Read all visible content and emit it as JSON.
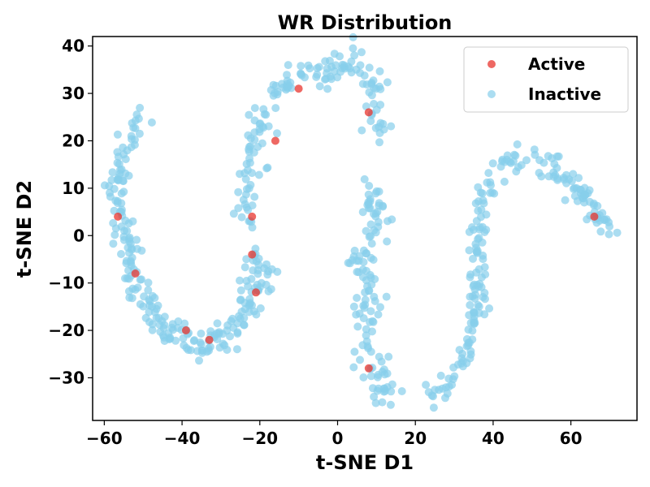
{
  "chart_data": {
    "type": "scatter",
    "title": "WR Distribution",
    "xlabel": "t-SNE D1",
    "ylabel": "t-SNE D2",
    "xlim": [
      -63,
      77
    ],
    "ylim": [
      -39,
      42
    ],
    "xticks": [
      -60,
      -40,
      -20,
      0,
      20,
      40,
      60
    ],
    "yticks": [
      -30,
      -20,
      -10,
      0,
      10,
      20,
      30,
      40
    ],
    "grid": false,
    "legend_position": "top-right",
    "series": [
      {
        "name": "Active",
        "color": "#e8362f",
        "points": [
          [
            -56.5,
            4
          ],
          [
            -52,
            -8
          ],
          [
            -39,
            -20
          ],
          [
            -33,
            -22
          ],
          [
            -22,
            4
          ],
          [
            -22,
            -4
          ],
          [
            -21,
            -12
          ],
          [
            -16,
            20
          ],
          [
            -10,
            31
          ],
          [
            8,
            26
          ],
          [
            8,
            -28
          ],
          [
            66,
            4
          ]
        ]
      },
      {
        "name": "Inactive",
        "color": "#87ceeb",
        "segments": [
          {
            "points": [
              [
                -51,
                25
              ],
              [
                -53,
                22
              ],
              [
                -55,
                19
              ],
              [
                -56,
                15
              ],
              [
                -57,
                12
              ],
              [
                -57,
                8
              ],
              [
                -56,
                5
              ],
              [
                -55,
                2
              ],
              [
                -54,
                -1
              ],
              [
                -53,
                -5
              ],
              [
                -52,
                -9
              ],
              [
                -50,
                -13
              ],
              [
                -48,
                -16
              ],
              [
                -45,
                -19
              ],
              [
                -42,
                -21
              ],
              [
                -38,
                -23
              ],
              [
                -34,
                -23
              ],
              [
                -30,
                -22
              ]
            ],
            "spread": 1.6,
            "n": 170
          },
          {
            "points": [
              [
                -30,
                -22
              ],
              [
                -27,
                -20
              ],
              [
                -24,
                -18
              ],
              [
                -22,
                -15
              ],
              [
                -20,
                -11
              ],
              [
                -19,
                -8
              ],
              [
                -19,
                -6
              ],
              [
                -22,
                -5
              ]
            ],
            "spread": 1.5,
            "n": 70
          },
          {
            "points": [
              [
                -24,
                2
              ],
              [
                -23,
                6
              ],
              [
                -23,
                10
              ],
              [
                -22,
                15
              ],
              [
                -21,
                19
              ],
              [
                -20,
                24
              ],
              [
                -18,
                28
              ],
              [
                -15,
                31
              ],
              [
                -12,
                33
              ],
              [
                -9,
                34
              ],
              [
                -5,
                34
              ],
              [
                -2,
                36
              ],
              [
                2,
                37
              ],
              [
                6,
                35
              ],
              [
                9,
                31
              ],
              [
                9,
                26
              ],
              [
                11,
                22
              ]
            ],
            "spread": 1.6,
            "n": 150
          },
          {
            "points": [
              [
                10,
                10
              ],
              [
                9,
                5
              ],
              [
                12,
                6
              ],
              [
                9,
                0
              ],
              [
                6,
                -3
              ],
              [
                4,
                -6
              ],
              [
                8,
                -10
              ],
              [
                6,
                -14
              ],
              [
                8,
                -18
              ],
              [
                7,
                -22
              ],
              [
                8,
                -26
              ],
              [
                9,
                -29
              ],
              [
                11,
                -32
              ],
              [
                14,
                -33
              ]
            ],
            "spread": 1.8,
            "n": 120
          },
          {
            "points": [
              [
                23,
                -32
              ],
              [
                26,
                -34
              ],
              [
                28,
                -31
              ],
              [
                31,
                -28
              ],
              [
                33,
                -24
              ],
              [
                34,
                -20
              ],
              [
                36,
                -16
              ],
              [
                36,
                -10
              ],
              [
                36,
                -5
              ],
              [
                36,
                0
              ],
              [
                37,
                5
              ],
              [
                38,
                9
              ],
              [
                40,
                12
              ],
              [
                43,
                15
              ],
              [
                47,
                17
              ],
              [
                51,
                17
              ],
              [
                55,
                15
              ],
              [
                59,
                12
              ],
              [
                62,
                9
              ],
              [
                65,
                6
              ],
              [
                67,
                3
              ],
              [
                70,
                2
              ]
            ],
            "spread": 1.3,
            "n": 200
          }
        ]
      }
    ]
  }
}
